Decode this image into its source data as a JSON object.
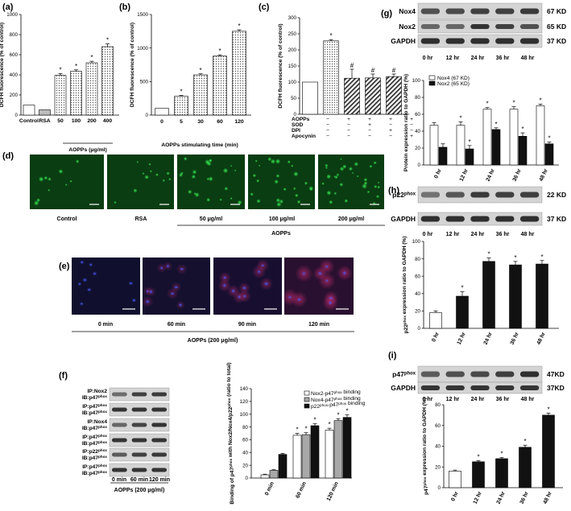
{
  "panel_labels": {
    "a": "(a)",
    "b": "(b)",
    "c": "(c)",
    "d": "(d)",
    "e": "(e)",
    "f": "(f)",
    "g": "(g)",
    "h": "(h)",
    "i": "(i)"
  },
  "significance_star": "*",
  "significance_hash": "#",
  "colors": {
    "bar_black": "#111111",
    "bar_gray": "#a8a8a8",
    "fluor_green": "#0a3d12",
    "fluor_blue": "#1c2060",
    "fluor_red": "#6a1a4a",
    "band_dark": "#222222"
  },
  "chart_data": [
    {
      "id": "a",
      "type": "bar",
      "ylabel": "DCFH fluorescence  (% of control)",
      "categories": [
        "Control",
        "RSA",
        "50",
        "100",
        "200",
        "400"
      ],
      "values": [
        100,
        52,
        395,
        435,
        520,
        680
      ],
      "errors": [
        0,
        0,
        18,
        15,
        15,
        28
      ],
      "significant": [
        false,
        false,
        true,
        true,
        true,
        true
      ],
      "ylim": [
        0,
        1000
      ],
      "yticks": [
        "0",
        "200",
        "400",
        "600",
        "800",
        "1000"
      ],
      "group_label": "AOPPs (μg/ml)"
    },
    {
      "id": "b",
      "type": "bar",
      "ylabel": "DCFH fluorescence  (% of control)",
      "categories": [
        "0",
        "5",
        "30",
        "60",
        "120"
      ],
      "values": [
        100,
        280,
        600,
        880,
        1250
      ],
      "errors": [
        0,
        12,
        15,
        18,
        22
      ],
      "significant": [
        false,
        true,
        true,
        true,
        true
      ],
      "ylim": [
        0,
        1500
      ],
      "yticks": [
        "0",
        "500",
        "1000",
        "1500"
      ],
      "xlabel": "AOPPs stimulating time (min)"
    },
    {
      "id": "c",
      "type": "bar",
      "ylabel": "DCFH fluorescence  (% of control)",
      "values": [
        100,
        228,
        112,
        113,
        117
      ],
      "errors": [
        0,
        4,
        28,
        12,
        8
      ],
      "marks": [
        "",
        "*",
        "#",
        "#",
        "#"
      ],
      "ylim": [
        0,
        300
      ],
      "yticks": [
        "0",
        "50",
        "100",
        "150",
        "200",
        "250",
        "300"
      ],
      "treatment_rows": [
        {
          "name": "AOPPs",
          "signs": [
            "−",
            "+",
            "+",
            "+",
            "+"
          ]
        },
        {
          "name": "SOD",
          "signs": [
            "−",
            "−",
            "+",
            "−",
            "−"
          ]
        },
        {
          "name": "DPI",
          "signs": [
            "−",
            "−",
            "−",
            "+",
            "−"
          ]
        },
        {
          "name": "Apocynin",
          "signs": [
            "−",
            "−",
            "−",
            "−",
            "+"
          ]
        }
      ]
    },
    {
      "id": "f",
      "type": "bar",
      "ylabel": "Binding of p47phox with Nox2/Nox4/p22phox (ratio to total)",
      "categories": [
        "0 min",
        "60 min",
        "120 min"
      ],
      "series": [
        {
          "name": "Nox2-p47phox binding",
          "values": [
            5,
            67,
            75
          ],
          "errors": [
            1,
            3,
            3
          ]
        },
        {
          "name": "Nox4-p47phox binding",
          "values": [
            12,
            68,
            90
          ],
          "errors": [
            1,
            3,
            3
          ]
        },
        {
          "name": "p22phox-p47phox binding",
          "values": [
            37,
            82,
            95
          ],
          "errors": [
            1.5,
            3,
            4
          ]
        }
      ],
      "significant": [
        false,
        true,
        true
      ],
      "ylim": [
        0,
        140
      ],
      "yticks": [
        "0",
        "20",
        "40",
        "60",
        "80",
        "100",
        "120",
        "140"
      ]
    },
    {
      "id": "g",
      "type": "bar",
      "ylabel": "Protein expression ratio to GAPDH (%)",
      "categories": [
        "0 hr",
        "12 hr",
        "24 hr",
        "36 hr",
        "48 hr"
      ],
      "series": [
        {
          "name": "Nox4 (67 KD)",
          "values": [
            47,
            47,
            66,
            66,
            70
          ],
          "errors": [
            3,
            4,
            2,
            3,
            2
          ]
        },
        {
          "name": "Nox2 (65 KD)",
          "values": [
            21,
            19,
            42,
            34,
            25
          ],
          "errors": [
            4,
            4,
            2,
            4,
            2
          ]
        }
      ],
      "significant": [
        false,
        true,
        true,
        true,
        true
      ],
      "ylim": [
        0,
        100
      ],
      "yticks": [
        "0",
        "20",
        "40",
        "60",
        "80",
        "100"
      ]
    },
    {
      "id": "h",
      "type": "bar",
      "ylabel": "p22phox expression ratio to GAPDH (%)",
      "categories": [
        "0 hr",
        "12 hr",
        "24 hr",
        "36 hr",
        "48 hr"
      ],
      "values": [
        18,
        37,
        77,
        73,
        74
      ],
      "errors": [
        2,
        5,
        4,
        4,
        4
      ],
      "significant": [
        false,
        true,
        true,
        true,
        true
      ],
      "ylim": [
        0,
        100
      ],
      "yticks": [
        "0",
        "20",
        "40",
        "60",
        "80",
        "100"
      ]
    },
    {
      "id": "i",
      "type": "bar",
      "ylabel": "p47phox expression ratio to GAPDH (%)",
      "categories": [
        "0 hr",
        "12 hr",
        "24 hr",
        "36 hr",
        "48 hr"
      ],
      "values": [
        16,
        25,
        28,
        39,
        70
      ],
      "errors": [
        1,
        1,
        1,
        2,
        2
      ],
      "significant": [
        false,
        true,
        true,
        true,
        true
      ],
      "ylim": [
        0,
        80
      ],
      "yticks": [
        "0",
        "20",
        "40",
        "60",
        "80"
      ]
    }
  ],
  "panel_d": {
    "images": [
      "Control",
      "RSA",
      "50 μg/ml",
      "100 μg/ml",
      "200 μg/ml"
    ],
    "group_label": "AOPPs"
  },
  "panel_e": {
    "images": [
      "0 min",
      "60 min",
      "90 min",
      "120 min"
    ],
    "group_label": "AOPPs (200 μg/ml)"
  },
  "blot_f": {
    "rows": [
      "IP:Nox2",
      "IB:p47phox",
      "IP:p47phox",
      "IB:p47phox",
      "IP:Nox4",
      "IB:p47phox",
      "IP:p47phox",
      "IB:p47phox",
      "IP:p22phox",
      "IB:p47phox",
      "IP:p47phox",
      "IB:p47phox"
    ],
    "lanes": [
      "0 min",
      "60 min",
      "120 min"
    ],
    "group_label": "AOPPs (200 μg/ml)"
  },
  "blot_g": {
    "rows": [
      "Nox4",
      "Nox2",
      "GAPDH"
    ],
    "kd": [
      "67 KD",
      "65 KD",
      "37 KD"
    ],
    "lanes": [
      "0 hr",
      "12 hr",
      "24 hr",
      "36 hr",
      "48 hr"
    ]
  },
  "blot_h": {
    "rows": [
      "p22phox",
      "GAPDH"
    ],
    "kd": [
      "22 KD",
      "37 KD"
    ],
    "lanes": [
      "0 hr",
      "12 hr",
      "24 hr",
      "36 hr",
      "48 hr"
    ]
  },
  "blot_i": {
    "rows": [
      "p47phox",
      "GAPDH"
    ],
    "kd": [
      "47KD",
      "37KD"
    ],
    "lanes": [
      "0 hr",
      "12 hr",
      "24 hr",
      "36 hr",
      "48 hr"
    ]
  }
}
